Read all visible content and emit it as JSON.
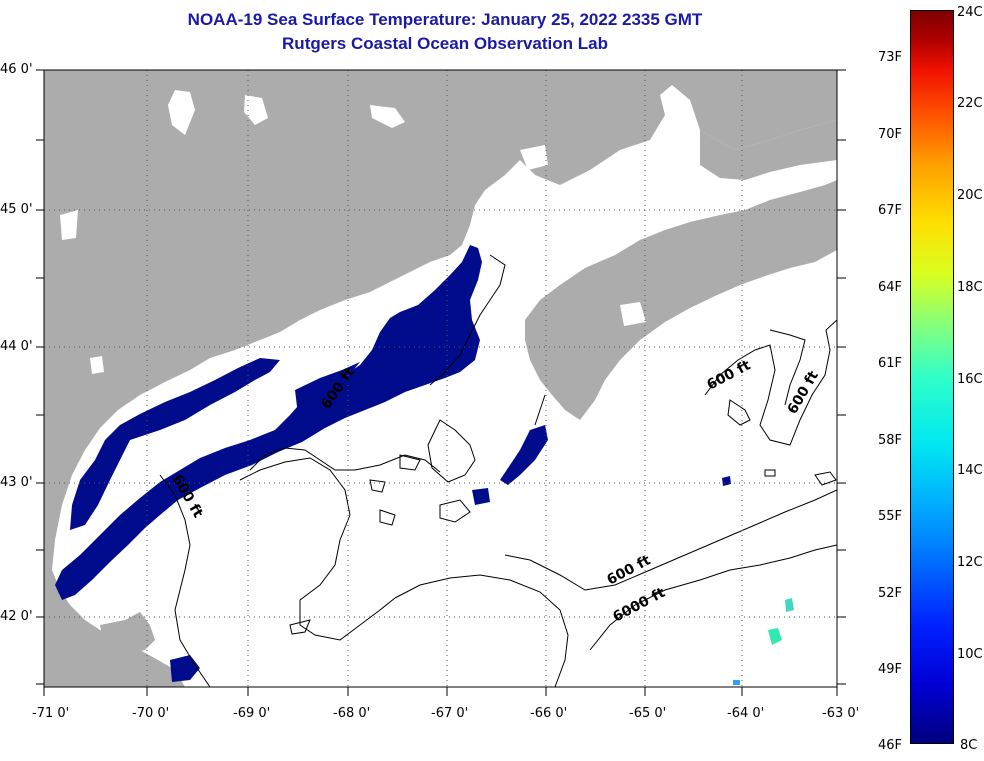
{
  "title_line1": "NOAA-19 Sea Surface Temperature:  January 25, 2022 2335 GMT",
  "title_line2": "Rutgers Coastal Ocean Observation Lab",
  "lon_labels": [
    "-71 0'",
    "-70 0'",
    "-69 0'",
    "-68 0'",
    "-67 0'",
    "-66 0'",
    "-65 0'",
    "-64 0'",
    "-63 0'"
  ],
  "lat_labels": [
    "46 0'",
    "45 0'",
    "44 0'",
    "43 0'",
    "42 0'"
  ],
  "contour_labels": [
    "600 ft",
    "600 ft",
    "600 ft",
    "600 ft",
    "600 ft",
    "6000 ft"
  ],
  "colorbar": {
    "fahrenheit": [
      "73F",
      "70F",
      "67F",
      "64F",
      "61F",
      "58F",
      "55F",
      "52F",
      "49F",
      "46F"
    ],
    "celsius": [
      "24C",
      "22C",
      "20C",
      "18C",
      "16C",
      "14C",
      "12C",
      "10C",
      "8C"
    ]
  },
  "colors": {
    "land": "#acacac",
    "cold_water": "#000c8c",
    "title": "#1a1aa6"
  }
}
